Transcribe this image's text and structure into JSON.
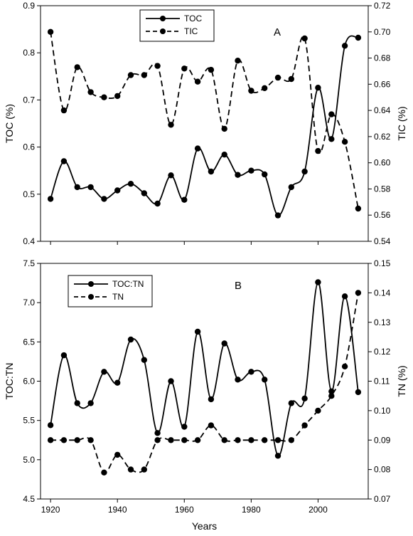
{
  "chart_data": [
    {
      "type": "line",
      "panel_label": "A",
      "xlim": [
        1917,
        2015
      ],
      "x_ticks": [
        1920,
        1940,
        1960,
        1980,
        2000
      ],
      "x_tick_labels": [],
      "xlabel": "",
      "ylabel": "TOC (%)",
      "ylim": [
        0.4,
        0.9
      ],
      "y_ticks": [
        "0.4",
        "0.5",
        "0.6",
        "0.7",
        "0.8",
        "0.9"
      ],
      "ylabel_right": "TIC (%)",
      "ylim_right": [
        0.54,
        0.72
      ],
      "y_ticks_right": [
        "0.54",
        "0.56",
        "0.58",
        "0.60",
        "0.62",
        "0.64",
        "0.66",
        "0.68",
        "0.70",
        "0.72"
      ],
      "grid": false,
      "legend": "top-center",
      "series": [
        {
          "name": "TOC",
          "axis": "left",
          "style": "solid",
          "x": [
            1920,
            1924,
            1928,
            1932,
            1936,
            1940,
            1944,
            1948,
            1952,
            1956,
            1960,
            1964,
            1968,
            1972,
            1976,
            1980,
            1984,
            1988,
            1992,
            1996,
            2000,
            2004,
            2008,
            2012
          ],
          "values": [
            0.49,
            0.57,
            0.515,
            0.515,
            0.49,
            0.508,
            0.522,
            0.502,
            0.48,
            0.54,
            0.488,
            0.597,
            0.548,
            0.584,
            0.541,
            0.55,
            0.542,
            0.455,
            0.515,
            0.548,
            0.726,
            0.617,
            0.815,
            0.832
          ]
        },
        {
          "name": "TIC",
          "axis": "right",
          "style": "dashed",
          "x": [
            1920,
            1924,
            1928,
            1932,
            1936,
            1940,
            1944,
            1948,
            1952,
            1956,
            1960,
            1964,
            1968,
            1972,
            1976,
            1980,
            1984,
            1988,
            1992,
            1996,
            2000,
            2004,
            2008,
            2012
          ],
          "values": [
            0.7,
            0.64,
            0.673,
            0.654,
            0.65,
            0.651,
            0.667,
            0.667,
            0.674,
            0.629,
            0.672,
            0.662,
            0.671,
            0.626,
            0.678,
            0.655,
            0.657,
            0.665,
            0.664,
            0.695,
            0.609,
            0.637,
            0.616,
            0.565
          ]
        }
      ]
    },
    {
      "type": "line",
      "panel_label": "B",
      "xlim": [
        1917,
        2015
      ],
      "x_ticks": [
        1920,
        1940,
        1960,
        1980,
        2000
      ],
      "x_tick_labels": [
        "1920",
        "1940",
        "1960",
        "1980",
        "2000"
      ],
      "xlabel": "Years",
      "ylabel": "TOC:TN",
      "ylim": [
        4.5,
        7.5
      ],
      "y_ticks": [
        "4.5",
        "5.0",
        "5.5",
        "6.0",
        "6.5",
        "7.0",
        "7.5"
      ],
      "ylabel_right": "TN (%)",
      "ylim_right": [
        0.07,
        0.15
      ],
      "y_ticks_right": [
        "0.07",
        "0.08",
        "0.09",
        "0.10",
        "0.11",
        "0.12",
        "0.13",
        "0.14",
        "0.15"
      ],
      "grid": false,
      "legend": "top-left",
      "series": [
        {
          "name": "TOC:TN",
          "axis": "left",
          "style": "solid",
          "x": [
            1920,
            1924,
            1928,
            1932,
            1936,
            1940,
            1944,
            1948,
            1952,
            1956,
            1960,
            1964,
            1968,
            1972,
            1976,
            1980,
            1984,
            1988,
            1992,
            1996,
            2000,
            2004,
            2008,
            2012
          ],
          "values": [
            5.44,
            6.33,
            5.72,
            5.72,
            6.12,
            5.98,
            6.53,
            6.27,
            5.34,
            6.0,
            5.42,
            6.63,
            5.77,
            6.48,
            6.02,
            6.12,
            6.02,
            5.05,
            5.72,
            5.78,
            7.26,
            5.87,
            7.08,
            5.86
          ]
        },
        {
          "name": "TN",
          "axis": "right",
          "style": "dashed",
          "x": [
            1920,
            1924,
            1928,
            1932,
            1936,
            1940,
            1944,
            1948,
            1952,
            1956,
            1960,
            1964,
            1968,
            1972,
            1976,
            1980,
            1984,
            1988,
            1992,
            1996,
            2000,
            2004,
            2008,
            2012
          ],
          "values": [
            0.09,
            0.09,
            0.09,
            0.09,
            0.079,
            0.085,
            0.08,
            0.08,
            0.09,
            0.09,
            0.09,
            0.09,
            0.095,
            0.09,
            0.09,
            0.09,
            0.09,
            0.09,
            0.09,
            0.095,
            0.1,
            0.105,
            0.115,
            0.14
          ]
        }
      ]
    }
  ]
}
